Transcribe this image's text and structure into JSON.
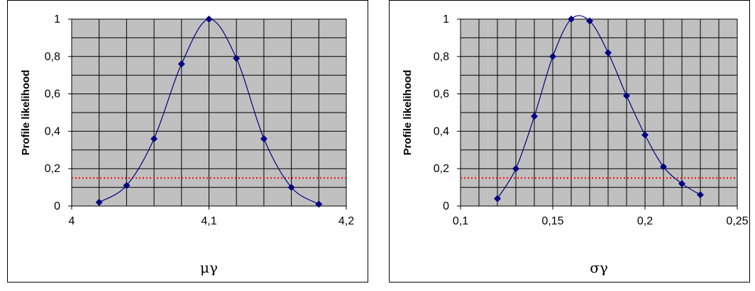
{
  "chart_data": [
    {
      "type": "line",
      "xlabel": "μγ",
      "ylabel": "Profile likelihood",
      "xlim": [
        4,
        4.2
      ],
      "ylim": [
        0,
        1
      ],
      "x_ticks": [
        "4",
        "4,1",
        "4,2"
      ],
      "y_ticks": [
        "0",
        "0,2",
        "0,4",
        "0,6",
        "0,8",
        "1"
      ],
      "grid": true,
      "plot_background": "#c0c0c0",
      "series": [
        {
          "color": "#000080",
          "marker": "diamond",
          "points": [
            {
              "x": 4.02,
              "y": 0.02
            },
            {
              "x": 4.04,
              "y": 0.11
            },
            {
              "x": 4.06,
              "y": 0.36
            },
            {
              "x": 4.08,
              "y": 0.76
            },
            {
              "x": 4.1,
              "y": 1.0
            },
            {
              "x": 4.12,
              "y": 0.79
            },
            {
              "x": 4.14,
              "y": 0.36
            },
            {
              "x": 4.16,
              "y": 0.1
            },
            {
              "x": 4.18,
              "y": 0.01
            }
          ]
        }
      ],
      "threshold": {
        "y": 0.15,
        "color": "#ff0000",
        "style": "dotted"
      }
    },
    {
      "type": "line",
      "xlabel": "σγ",
      "ylabel": "Profile likelihood",
      "xlim": [
        0.1,
        0.25
      ],
      "ylim": [
        0,
        1
      ],
      "x_ticks": [
        "0,1",
        "0,15",
        "0,2",
        "0,25"
      ],
      "y_ticks": [
        "0",
        "0,2",
        "0,4",
        "0,6",
        "0,8",
        "1"
      ],
      "grid": true,
      "plot_background": "#c0c0c0",
      "series": [
        {
          "color": "#000080",
          "marker": "diamond",
          "points": [
            {
              "x": 0.12,
              "y": 0.04
            },
            {
              "x": 0.13,
              "y": 0.2
            },
            {
              "x": 0.14,
              "y": 0.48
            },
            {
              "x": 0.15,
              "y": 0.8
            },
            {
              "x": 0.16,
              "y": 1.0
            },
            {
              "x": 0.17,
              "y": 0.99
            },
            {
              "x": 0.18,
              "y": 0.82
            },
            {
              "x": 0.19,
              "y": 0.59
            },
            {
              "x": 0.2,
              "y": 0.38
            },
            {
              "x": 0.21,
              "y": 0.21
            },
            {
              "x": 0.22,
              "y": 0.12
            },
            {
              "x": 0.23,
              "y": 0.06
            }
          ]
        }
      ],
      "threshold": {
        "y": 0.15,
        "color": "#ff0000",
        "style": "dotted"
      }
    }
  ]
}
